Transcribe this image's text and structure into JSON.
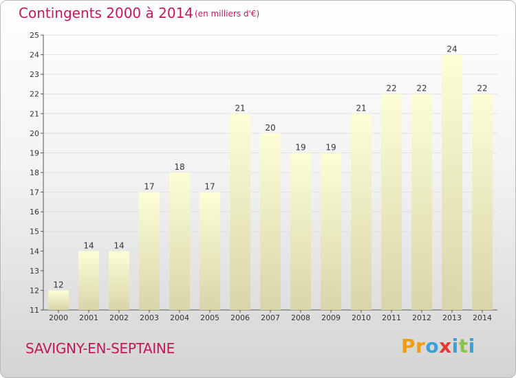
{
  "header": {
    "title": "Contingents 2000 à 2014",
    "unit": "(en milliers d'€)"
  },
  "footer": {
    "commune": "SAVIGNY-EN-SEPTAINE",
    "brand_letters": [
      "P",
      "r",
      "o",
      "x",
      "i",
      "t",
      "i"
    ]
  },
  "colors": {
    "title": "#c2185b",
    "bar_top": "#fdfed6",
    "bar_bottom": "#d8d6a8",
    "grid": "#e0e0e0",
    "brand": [
      "#f39c12",
      "#f39c12",
      "#3aa0d8",
      "#e53935",
      "#3aa0d8",
      "#8bc34a",
      "#3aa0d8"
    ]
  },
  "chart_data": {
    "type": "bar",
    "title": "Contingents 2000 à 2014",
    "subtitle": "(en milliers d'€)",
    "categories": [
      "2000",
      "2001",
      "2002",
      "2003",
      "2004",
      "2005",
      "2006",
      "2007",
      "2008",
      "2009",
      "2010",
      "2011",
      "2012",
      "2013",
      "2014"
    ],
    "values": [
      12,
      14,
      14,
      17,
      18,
      17,
      21,
      20,
      19,
      19,
      21,
      22,
      22,
      24,
      22
    ],
    "ylim": [
      11,
      25
    ],
    "yticks": [
      11,
      12,
      13,
      14,
      15,
      16,
      17,
      18,
      19,
      20,
      21,
      22,
      23,
      24,
      25
    ],
    "grid": true,
    "data_labels": true
  }
}
